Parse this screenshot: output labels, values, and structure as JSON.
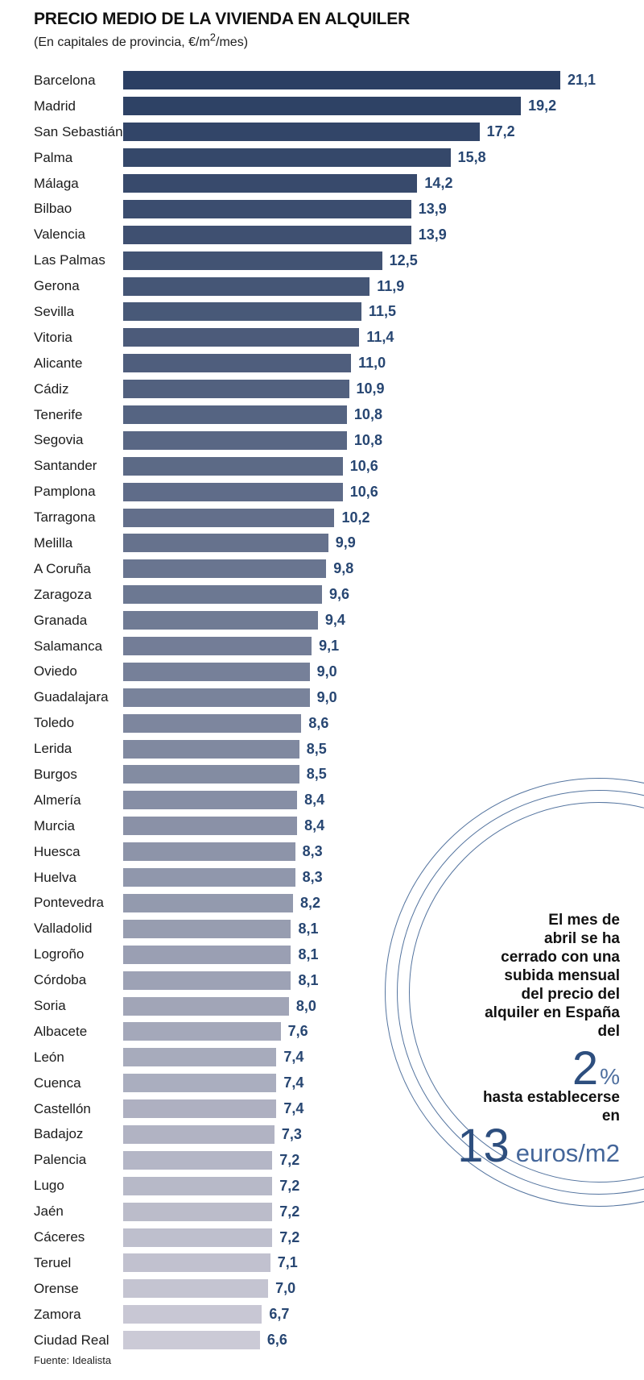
{
  "title": "PRECIO MEDIO DE LA VIVIENDA EN ALQUILER",
  "subtitle": {
    "prefix": "(En capitales de provincia, €/m",
    "sup": "2",
    "suffix": "/mes)"
  },
  "source": "Fuente: Idealista",
  "chart_data": {
    "type": "bar",
    "orientation": "horizontal",
    "title": "PRECIO MEDIO DE LA VIVIENDA EN ALQUILER",
    "subtitle": "(En capitales de provincia, €/m2/mes)",
    "unit": "€/m2/mes",
    "xlim": [
      0,
      21.1
    ],
    "grid": false,
    "decimal_separator": ",",
    "bar_color_start": "#2b3f63",
    "bar_color_end": "#cbcad6",
    "value_label_color": "#274672",
    "categories": [
      "Barcelona",
      "Madrid",
      "San Sebastián",
      "Palma",
      "Málaga",
      "Bilbao",
      "Valencia",
      "Las Palmas",
      "Gerona",
      "Sevilla",
      "Vitoria",
      "Alicante",
      "Cádiz",
      "Tenerife",
      "Segovia",
      "Santander",
      "Pamplona",
      "Tarragona",
      "Melilla",
      "A Coruña",
      "Zaragoza",
      "Granada",
      "Salamanca",
      "Oviedo",
      "Guadalajara",
      "Toledo",
      "Lerida",
      "Burgos",
      "Almería",
      "Murcia",
      "Huesca",
      "Huelva",
      "Pontevedra",
      "Valladolid",
      "Logroño",
      "Córdoba",
      "Soria",
      "Albacete",
      "León",
      "Cuenca",
      "Castellón",
      "Badajoz",
      "Palencia",
      "Lugo",
      "Jaén",
      "Cáceres",
      "Teruel",
      "Orense",
      "Zamora",
      "Ciudad Real"
    ],
    "values": [
      21.1,
      19.2,
      17.2,
      15.8,
      14.2,
      13.9,
      13.9,
      12.5,
      11.9,
      11.5,
      11.4,
      11.0,
      10.9,
      10.8,
      10.8,
      10.6,
      10.6,
      10.2,
      9.9,
      9.8,
      9.6,
      9.4,
      9.1,
      9.0,
      9.0,
      8.6,
      8.5,
      8.5,
      8.4,
      8.4,
      8.3,
      8.3,
      8.2,
      8.1,
      8.1,
      8.1,
      8.0,
      7.6,
      7.4,
      7.4,
      7.4,
      7.3,
      7.2,
      7.2,
      7.2,
      7.2,
      7.1,
      7.0,
      6.7,
      6.6
    ]
  },
  "annotation": {
    "text_1": "El mes de\nabril se ha\ncerrado con una\nsubida mensual\ndel precio del\nalquiler en España\ndel",
    "big_value_1": "2",
    "big_unit_1": "%",
    "text_2": "hasta establecerse\nen",
    "big_value_2": "13",
    "big_unit_2": "euros/m2",
    "accent_color": "#2d4e7e",
    "unit_color": "#4e6f9f",
    "ring_color": "#54749f"
  }
}
